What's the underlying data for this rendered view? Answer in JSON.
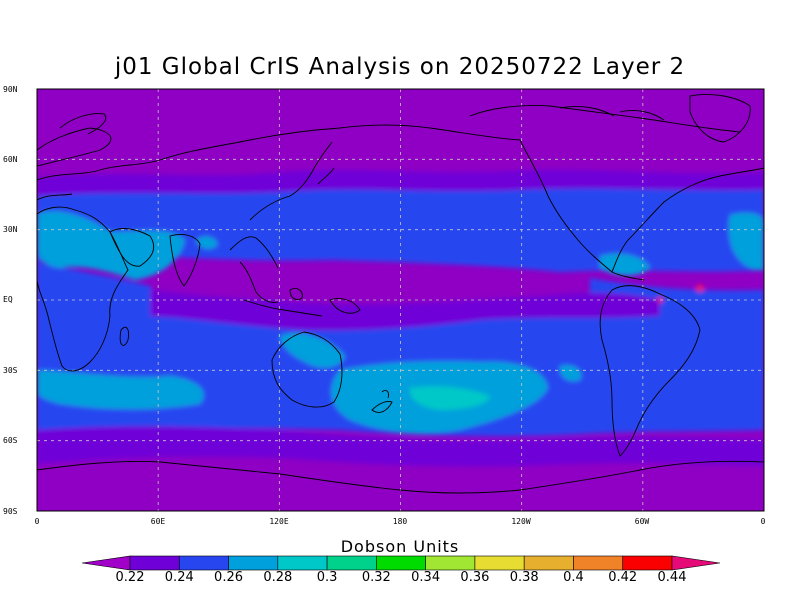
{
  "title": "j01 Global CrIS Analysis on 20250722 Layer 2",
  "lat_labels": [
    "90N",
    "60N",
    "30N",
    "EQ",
    "30S",
    "60S",
    "90S"
  ],
  "lon_labels": [
    "0",
    "60E",
    "120E",
    "180",
    "120W",
    "60W",
    "0"
  ],
  "colorbar": {
    "units": "Dobson Units",
    "labels": [
      "0.22",
      "0.24",
      "0.26",
      "0.28",
      "0.3",
      "0.32",
      "0.34",
      "0.36",
      "0.38",
      "0.4",
      "0.42",
      "0.44"
    ],
    "colors": [
      "#a000c8",
      "#7000d8",
      "#2846f0",
      "#00a0dc",
      "#00c8c8",
      "#00d28c",
      "#00dc00",
      "#a0e632",
      "#e6dc32",
      "#e6af2d",
      "#f08228",
      "#fa0000",
      "#e60a78"
    ]
  },
  "map": {
    "color_levels": {
      "background": "#8f00c4",
      "band_purple": "#7000d8",
      "band_blue": "#2846f0",
      "band_cyan": "#00a0dc",
      "band_teal": "#00c8c8"
    },
    "grid_color": "#c8c8c8",
    "coastline_color": "#000000"
  }
}
